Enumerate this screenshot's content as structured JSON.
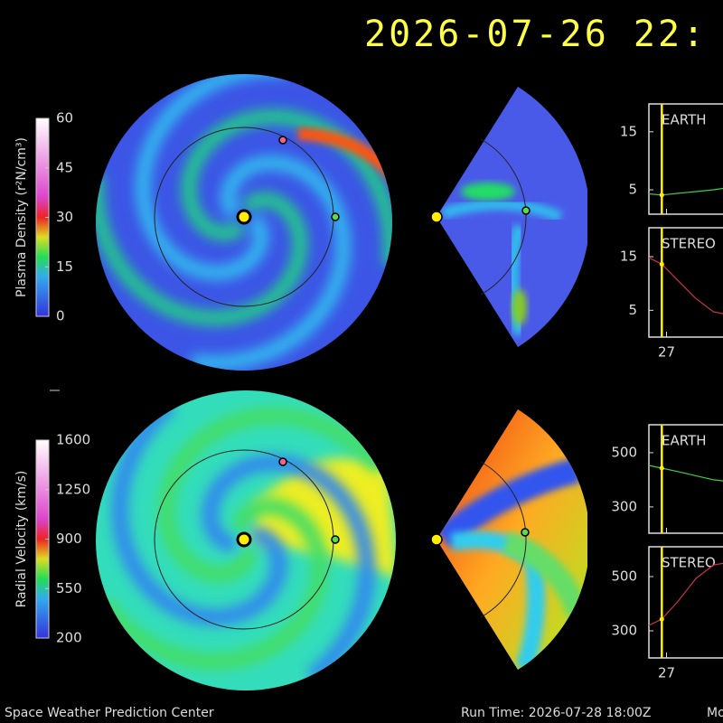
{
  "header": {
    "timestamp": "2026-07-26 22:"
  },
  "colorbars": [
    {
      "label": "Plasma Density (r²N/cm³)",
      "lim": [
        0,
        60
      ],
      "ticks": [
        0,
        15,
        30,
        45,
        60
      ]
    },
    {
      "label": "Radial Velocity (km/s)",
      "lim": [
        200,
        1600
      ],
      "ticks": [
        200,
        550,
        900,
        1250,
        1600
      ]
    }
  ],
  "timeseries": {
    "xlim": [
      26.85,
      27.6
    ],
    "xticks": [
      27
    ],
    "current_x": 26.96,
    "x": [
      26.85,
      26.96,
      27.1,
      27.25,
      27.4,
      27.5
    ],
    "panels": [
      {
        "label": "EARTH",
        "color": "#44cc44",
        "ylim": [
          0.8,
          19.8
        ],
        "yticks": [
          5,
          15
        ],
        "values": [
          4.3,
          4.1,
          4.4,
          4.7,
          5.0,
          5.3
        ]
      },
      {
        "label": "STEREO",
        "color": "#cc3344",
        "ylim": [
          0,
          20.4
        ],
        "yticks": [
          5,
          15
        ],
        "values": [
          14.8,
          13.6,
          10.5,
          7.2,
          4.7,
          4.3
        ]
      },
      {
        "label": "EARTH",
        "color": "#44cc44",
        "ylim": [
          203,
          603
        ],
        "yticks": [
          300,
          500
        ],
        "values": [
          453,
          443,
          430,
          415,
          400,
          395
        ]
      },
      {
        "label": "STEREO",
        "color": "#cc3344",
        "ylim": [
          200,
          610
        ],
        "yticks": [
          300,
          500
        ],
        "values": [
          320,
          343,
          410,
          493,
          543,
          550
        ]
      }
    ]
  },
  "footer": {
    "left": "Space Weather Prediction Center",
    "run_time": "Run Time: 2026-07-28 18:00Z",
    "right": "Mo"
  }
}
